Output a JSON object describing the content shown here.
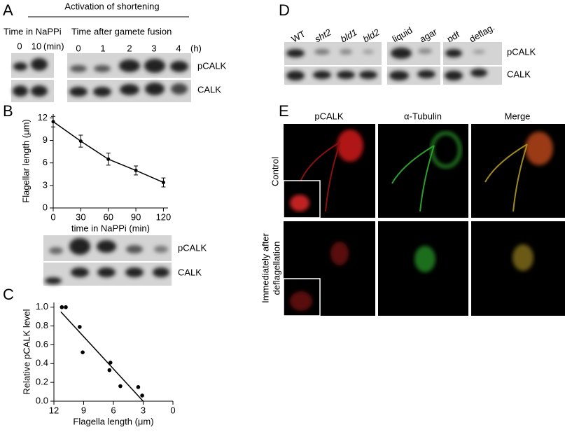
{
  "figure": {
    "A": {
      "label": "A",
      "heading": "Activation of shortening",
      "left_title": "Time in NaPPi",
      "right_title": "Time after gamete fusion",
      "left_lanes": [
        "0",
        "10"
      ],
      "left_unit": "(min)",
      "right_lanes": [
        "0",
        "1",
        "2",
        "3",
        "4"
      ],
      "right_unit": "(h)",
      "rows": [
        "pCALK",
        "CALK"
      ]
    },
    "B": {
      "label": "B",
      "rows": [
        "pCALK",
        "CALK"
      ]
    },
    "C": {
      "label": "C"
    },
    "D": {
      "label": "D",
      "lanes": [
        "WT",
        "sht2",
        "bld1",
        "bld2",
        "liquid",
        "agar",
        "pdf",
        "deflag."
      ],
      "rows": [
        "pCALK",
        "CALK"
      ]
    },
    "E": {
      "label": "E",
      "columns": [
        "pCALK",
        "α-Tubulin",
        "Merge"
      ],
      "rows": [
        "Control",
        [
          "Immediately after",
          "deflagellation"
        ]
      ]
    }
  },
  "chart_data": [
    {
      "type": "line",
      "x_label": "time in NaPPi (min)",
      "y_label": "Flagellar length (μm)",
      "x": [
        0,
        30,
        60,
        90,
        120
      ],
      "series": [
        {
          "color": "#000000",
          "values": [
            11.5,
            8.9,
            6.5,
            5.0,
            3.4
          ],
          "errors": [
            0.7,
            0.8,
            0.8,
            0.6,
            0.6
          ]
        }
      ],
      "xlim": [
        0,
        125
      ],
      "xticks": [
        0,
        30,
        60,
        90,
        120
      ],
      "ylim": [
        0,
        12.5
      ],
      "yticks": [
        0,
        3,
        6,
        9,
        12
      ]
    },
    {
      "type": "scatter",
      "x_label": "Flagella length (μm)",
      "y_label": "Relative pCALK level",
      "x": [
        11.2,
        10.8,
        9.4,
        9.1,
        6.3,
        6.4,
        5.3,
        3.5,
        3.1
      ],
      "values": [
        1.0,
        1.0,
        0.79,
        0.52,
        0.41,
        0.33,
        0.16,
        0.15,
        0.06
      ],
      "color": "#000000",
      "trendline": {
        "x": [
          11.3,
          3.0
        ],
        "values": [
          0.95,
          0.0
        ]
      },
      "xlim": [
        12,
        0
      ],
      "xticks": [
        12,
        9,
        6,
        3,
        0
      ],
      "ylim": [
        0,
        1.05
      ],
      "yticks": [
        {
          "value": 0,
          "label": "0.0"
        },
        0.2,
        0.4,
        0.6,
        0.8,
        {
          "value": 1,
          "label": "1.0"
        }
      ]
    }
  ]
}
